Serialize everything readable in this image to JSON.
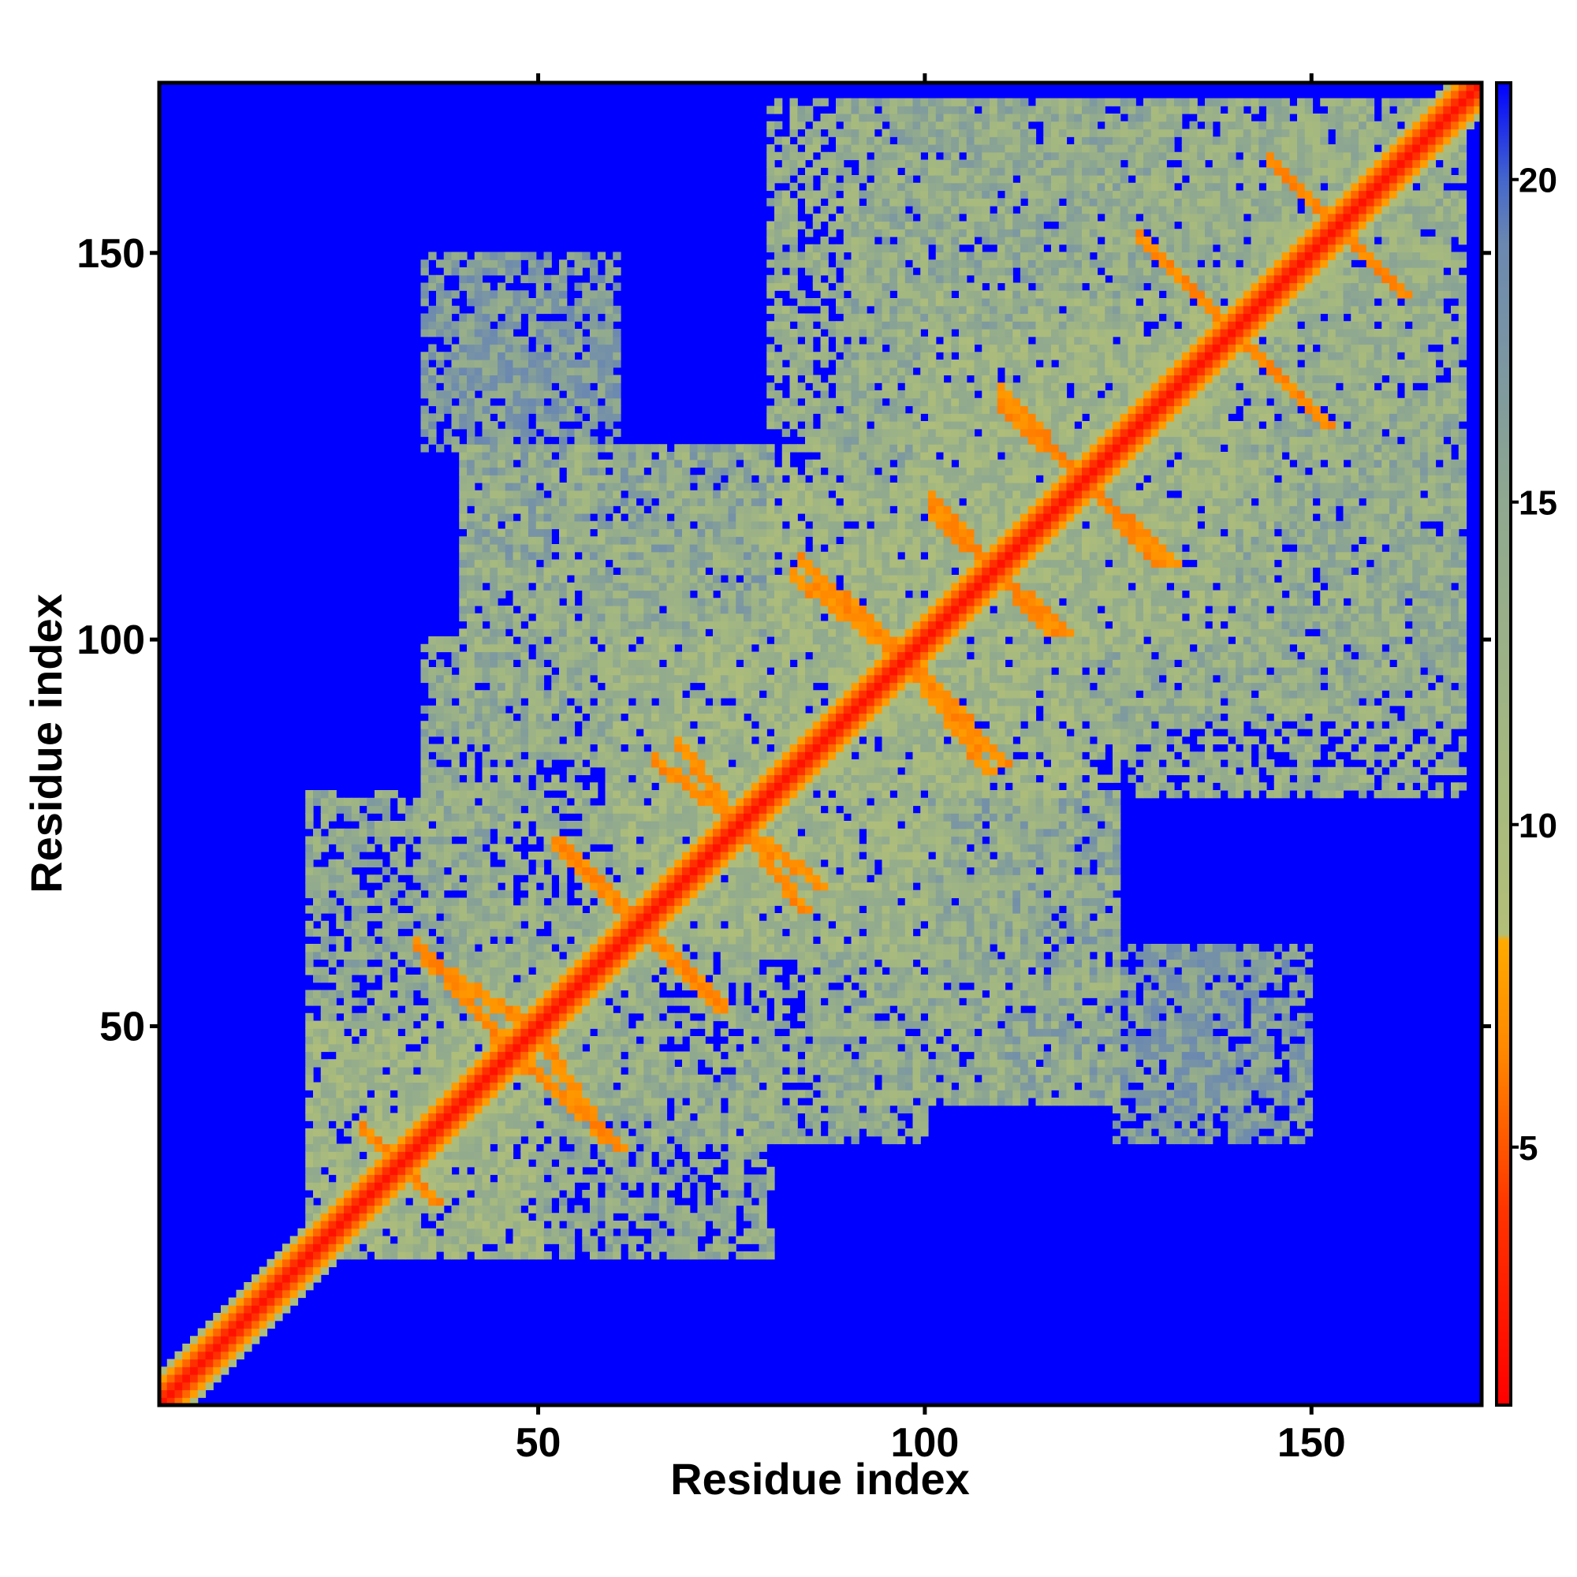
{
  "chart_data": {
    "type": "heatmap",
    "title": "",
    "xlabel": "Residue index",
    "ylabel": "Residue index",
    "xlim": [
      1,
      172
    ],
    "ylim": [
      1,
      172
    ],
    "x_ticks": [
      50,
      100,
      150
    ],
    "y_ticks": [
      50,
      100,
      150
    ],
    "x_tick_labels": [
      "50",
      "100",
      "150"
    ],
    "y_tick_labels": [
      "50",
      "100",
      "150"
    ],
    "n_residues": 172,
    "matrix_description": "Pairwise residue distance map (Angstrom-like units) of a 172-residue protein; red diagonal, orange crossing patterns, grey-green mid-range contacts, blue beyond cutoff.",
    "colorbar": {
      "range": [
        1,
        21.5
      ],
      "ticks": [
        5,
        10,
        15,
        20
      ],
      "tick_labels": [
        "5",
        "10",
        "15",
        "20"
      ],
      "stops": [
        {
          "value": 1,
          "color": "#ff0000"
        },
        {
          "value": 4,
          "color": "#ff3300"
        },
        {
          "value": 6.5,
          "color": "#ff8800"
        },
        {
          "value": 8.2,
          "color": "#ffaa00"
        },
        {
          "value": 8.3,
          "color": "#b3bf78"
        },
        {
          "value": 11,
          "color": "#a4b880"
        },
        {
          "value": 15,
          "color": "#8fa890"
        },
        {
          "value": 19,
          "color": "#6b88b0"
        },
        {
          "value": 20,
          "color": "#4466cc"
        },
        {
          "value": 21.5,
          "color": "#0000ff"
        }
      ],
      "background_color": "#0000ff"
    },
    "diagonal_band": [
      {
        "offset": 0,
        "value": 2
      },
      {
        "offset": 1,
        "value": 3.8
      },
      {
        "offset": 2,
        "value": 5.5
      },
      {
        "offset": 3,
        "value": 7.5
      },
      {
        "offset": 4,
        "value": 9.5
      }
    ],
    "contact_blocks": [
      {
        "x": [
          20,
          50
        ],
        "y": [
          20,
          50
        ],
        "value": 12
      },
      {
        "x": [
          35,
          65
        ],
        "y": [
          40,
          80
        ],
        "value": 13
      },
      {
        "x": [
          35,
          75
        ],
        "y": [
          60,
          100
        ],
        "value": 14
      },
      {
        "x": [
          40,
          80
        ],
        "y": [
          80,
          125
        ],
        "value": 13
      },
      {
        "x": [
          60,
          100
        ],
        "y": [
          60,
          100
        ],
        "value": 12
      },
      {
        "x": [
          80,
          120
        ],
        "y": [
          80,
          125
        ],
        "value": 12
      },
      {
        "x": [
          80,
          115
        ],
        "y": [
          120,
          170
        ],
        "value": 13
      },
      {
        "x": [
          100,
          140
        ],
        "y": [
          100,
          145
        ],
        "value": 12
      },
      {
        "x": [
          115,
          170
        ],
        "y": [
          130,
          170
        ],
        "value": 13
      },
      {
        "x": [
          120,
          170
        ],
        "y": [
          90,
          135
        ],
        "value": 14
      },
      {
        "x": [
          85,
          110
        ],
        "y": [
          40,
          75
        ],
        "value": 14
      },
      {
        "x": [
          100,
          125
        ],
        "y": [
          40,
          80
        ],
        "value": 15
      },
      {
        "x": [
          45,
          80
        ],
        "y": [
          20,
          45
        ],
        "value": 14
      },
      {
        "x": [
          130,
          140
        ],
        "y": [
          40,
          60
        ],
        "value": 16
      },
      {
        "x": [
          35,
          60
        ],
        "y": [
          125,
          150
        ],
        "value": 16
      }
    ],
    "strands": [
      {
        "from": [
          27,
          36
        ],
        "to": [
          36,
          27
        ],
        "value": 6
      },
      {
        "from": [
          34,
          60
        ],
        "to": [
          48,
          44
        ],
        "value": 6
      },
      {
        "from": [
          50,
          48
        ],
        "to": [
          58,
          35
        ],
        "value": 6
      },
      {
        "from": [
          53,
          73
        ],
        "to": [
          73,
          52
        ],
        "value": 6
      },
      {
        "from": [
          65,
          84
        ],
        "to": [
          86,
          68
        ],
        "value": 6
      },
      {
        "from": [
          83,
          108
        ],
        "to": [
          100,
          95
        ],
        "value": 6
      },
      {
        "from": [
          100,
          95
        ],
        "to": [
          110,
          84
        ],
        "value": 6
      },
      {
        "from": [
          101,
          116
        ],
        "to": [
          118,
          101
        ],
        "value": 6
      },
      {
        "from": [
          110,
          130
        ],
        "to": [
          132,
          110
        ],
        "value": 6
      },
      {
        "from": [
          128,
          152
        ],
        "to": [
          152,
          128
        ],
        "value": 6
      },
      {
        "from": [
          145,
          162
        ],
        "to": [
          162,
          145
        ],
        "value": 6
      }
    ]
  }
}
